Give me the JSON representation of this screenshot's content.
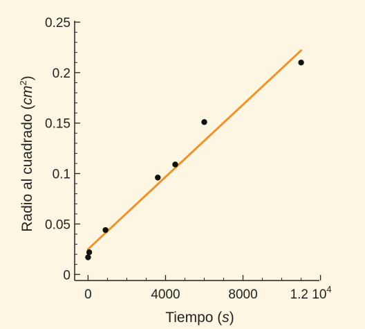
{
  "chart_data": {
    "type": "scatter",
    "xlabel": "Tiempo",
    "xlabel_unit": "s",
    "ylabel": "Radio al cuadrado",
    "ylabel_unit": "cm",
    "ylabel_unit_exponent": "2",
    "xlim": [
      -300,
      11800
    ],
    "ylim": [
      -0.006,
      0.25
    ],
    "x_ticks": [
      {
        "value": 0,
        "label": "0"
      },
      {
        "value": 4000,
        "label": "4000"
      },
      {
        "value": 8000,
        "label": "8000"
      },
      {
        "value": 12000,
        "label": "1.2 10"
      }
    ],
    "x_tick_exponent": "4",
    "y_ticks": [
      {
        "value": 0,
        "label": "0"
      },
      {
        "value": 0.05,
        "label": "0.05"
      },
      {
        "value": 0.1,
        "label": "0.1"
      },
      {
        "value": 0.15,
        "label": "0.15"
      },
      {
        "value": 0.2,
        "label": "0.2"
      },
      {
        "value": 0.25,
        "label": "0.25"
      }
    ],
    "points": [
      {
        "x": 0,
        "y": 0.017
      },
      {
        "x": 60,
        "y": 0.022
      },
      {
        "x": 900,
        "y": 0.044
      },
      {
        "x": 3600,
        "y": 0.096
      },
      {
        "x": 4500,
        "y": 0.109
      },
      {
        "x": 6000,
        "y": 0.151
      },
      {
        "x": 11000,
        "y": 0.21
      }
    ],
    "fit_line": {
      "x": [
        0,
        11000
      ],
      "y": [
        0.025,
        0.222
      ]
    },
    "colors": {
      "points": "#111111",
      "fit_line": "#f0922b",
      "axes": "#222222",
      "background": "#fdf6e3"
    }
  }
}
